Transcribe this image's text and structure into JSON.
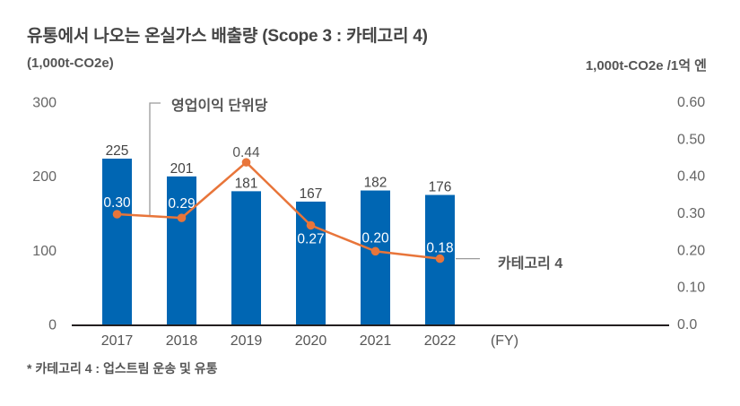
{
  "chart_data": {
    "type": "bar",
    "title": "유통에서 나오는 온실가스 배출량 (Scope 3 : 카테고리 4)",
    "xlabel": "(FY)",
    "ylabel": "(1,000t-CO2e)",
    "ylabel_right": "1,000t-CO2e /1억 엔",
    "categories": [
      "2017",
      "2018",
      "2019",
      "2020",
      "2021",
      "2022"
    ],
    "ylim": [
      0,
      300
    ],
    "ylim_right": [
      0,
      0.6
    ],
    "yticks": [
      "0",
      "100",
      "200",
      "300"
    ],
    "yticks_right": [
      "0.0",
      "0.10",
      "0.20",
      "0.30",
      "0.40",
      "0.50",
      "0.60"
    ],
    "grid": false,
    "series": [
      {
        "name": "카테고리 4",
        "type": "bar",
        "axis": "left",
        "color": "#0066b3",
        "values": [
          225,
          201,
          181,
          167,
          182,
          176
        ],
        "labels": [
          "225",
          "201",
          "181",
          "167",
          "182",
          "176"
        ]
      },
      {
        "name": "영업이익 단위당",
        "type": "line",
        "axis": "right",
        "color": "#e8753a",
        "values": [
          0.3,
          0.29,
          0.44,
          0.27,
          0.2,
          0.18
        ],
        "labels": [
          "0.30",
          "0.29",
          "0.44",
          "0.27",
          "0.20",
          "0.18"
        ]
      }
    ],
    "annotations": {
      "line": "영업이익 단위당",
      "bar": "카테고리 4"
    },
    "footnote": "* 카테고리 4 : 업스트림 운송 및 유통"
  }
}
